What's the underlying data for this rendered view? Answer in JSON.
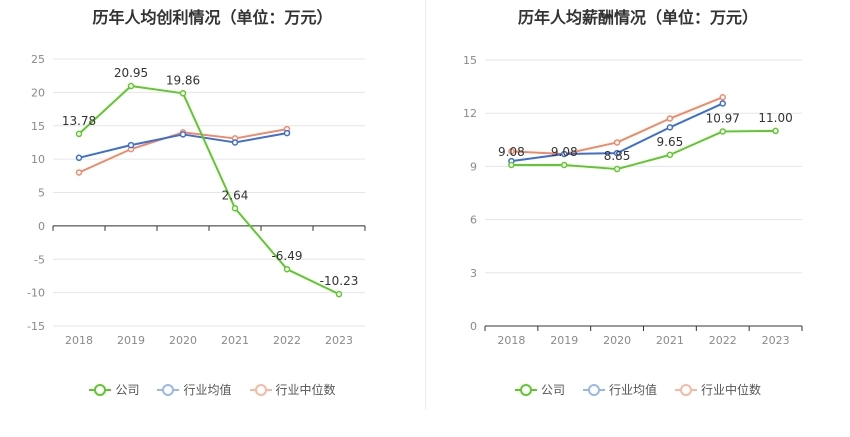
{
  "chart_data": [
    {
      "type": "line",
      "title": "历年人均创利情况（单位：万元）",
      "categories": [
        "2018",
        "2019",
        "2020",
        "2021",
        "2022",
        "2023"
      ],
      "ylim": [
        -15,
        25
      ],
      "yticks": [
        25,
        20,
        15,
        10,
        5,
        0,
        -5,
        -10,
        -15
      ],
      "grid": true,
      "legend_position": "bottom",
      "series": [
        {
          "name": "公司",
          "color": "#5ec92a",
          "values": [
            13.78,
            20.95,
            19.86,
            2.64,
            -6.49,
            -10.23
          ],
          "labels": [
            "13.78",
            "20.95",
            "19.86",
            "2.64",
            "-6.49",
            "-10.23"
          ]
        },
        {
          "name": "行业均值",
          "color": "#3d6fd1",
          "values": [
            10.2,
            12.1,
            13.7,
            12.5,
            13.9,
            null
          ]
        },
        {
          "name": "行业中位数",
          "color": "#f08a66",
          "values": [
            8.0,
            11.5,
            14.0,
            13.1,
            14.5,
            null
          ]
        }
      ]
    },
    {
      "type": "line",
      "title": "历年人均薪酬情况（单位：万元）",
      "categories": [
        "2018",
        "2019",
        "2020",
        "2021",
        "2022",
        "2023"
      ],
      "ylim": [
        0,
        15
      ],
      "yticks": [
        15,
        12,
        9,
        6,
        3,
        0
      ],
      "grid": true,
      "legend_position": "bottom",
      "series": [
        {
          "name": "公司",
          "color": "#5ec92a",
          "values": [
            9.08,
            9.08,
            8.85,
            9.65,
            10.97,
            11.0
          ],
          "labels": [
            "9.08",
            "9.08",
            "8.85",
            "9.65",
            "10.97",
            "11.00"
          ]
        },
        {
          "name": "行业均值",
          "color": "#3d6fd1",
          "values": [
            9.3,
            9.7,
            9.75,
            11.2,
            12.55,
            null
          ]
        },
        {
          "name": "行业中位数",
          "color": "#f08a66",
          "values": [
            9.85,
            9.7,
            10.35,
            11.7,
            12.9,
            null
          ]
        }
      ]
    }
  ],
  "legend_colors": {
    "company_marker_fill": "#ffffff",
    "industry_avg_legend": "#9ab8ec",
    "industry_median_legend": "#f6b9a4"
  }
}
